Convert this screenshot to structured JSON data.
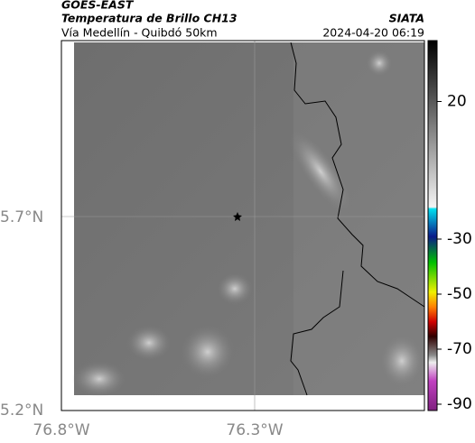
{
  "header": {
    "title": "GOES-EAST",
    "subtitle": "Temperatura de Brillo CH13",
    "region": "Vía Medellín - Quibdó 50km",
    "source": "SIATA",
    "datetime": "2024-04-20 06:19"
  },
  "map": {
    "lat_labels": [
      "5.7°N",
      "5.2°N"
    ],
    "lon_labels": [
      "76.8°W",
      "76.3°W"
    ]
  },
  "colorbar": {
    "ticks": [
      20,
      -30,
      -50,
      -70,
      -90
    ]
  }
}
